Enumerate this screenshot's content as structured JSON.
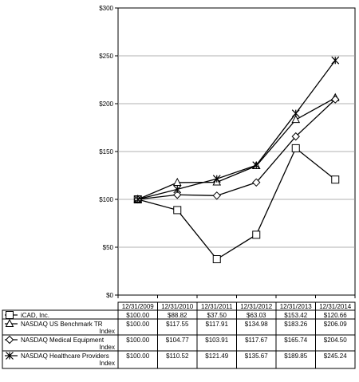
{
  "chart_data": {
    "type": "line",
    "categories": [
      "12/31/2009",
      "12/31/2010",
      "12/31/2011",
      "12/31/2012",
      "12/31/2013",
      "12/31/2014"
    ],
    "ylim": [
      0,
      300
    ],
    "y_ticks": [
      "$0",
      "$50",
      "$100",
      "$150",
      "$200",
      "$250",
      "$300"
    ],
    "y_tick_values": [
      0,
      50,
      100,
      150,
      200,
      250,
      300
    ],
    "grid": true,
    "legend_placement": "table-below",
    "series": [
      {
        "name_lines": [
          "iCAD, Inc."
        ],
        "marker": "square",
        "values": [
          100.0,
          88.82,
          37.5,
          63.03,
          153.42,
          120.66
        ],
        "labels": [
          "$100.00",
          "$88.82",
          "$37.50",
          "$63.03",
          "$153.42",
          "$120.66"
        ]
      },
      {
        "name_lines": [
          "NASDAQ US Benchmark TR",
          "Index"
        ],
        "marker": "triangle",
        "values": [
          100.0,
          117.55,
          117.91,
          134.98,
          183.26,
          206.09
        ],
        "labels": [
          "$100.00",
          "$117.55",
          "$117.91",
          "$134.98",
          "$183.26",
          "$206.09"
        ]
      },
      {
        "name_lines": [
          "NASDAQ Medical Equipment",
          "Index"
        ],
        "marker": "diamond",
        "values": [
          100.0,
          104.77,
          103.91,
          117.67,
          165.74,
          204.5
        ],
        "labels": [
          "$100.00",
          "$104.77",
          "$103.91",
          "$117.67",
          "$165.74",
          "$204.50"
        ]
      },
      {
        "name_lines": [
          "NASDAQ Healthcare Providers",
          "Index"
        ],
        "marker": "star",
        "values": [
          100.0,
          110.52,
          121.49,
          135.67,
          189.85,
          245.24
        ],
        "labels": [
          "$100.00",
          "$110.52",
          "$121.49",
          "$135.67",
          "$189.85",
          "$245.24"
        ]
      }
    ]
  }
}
